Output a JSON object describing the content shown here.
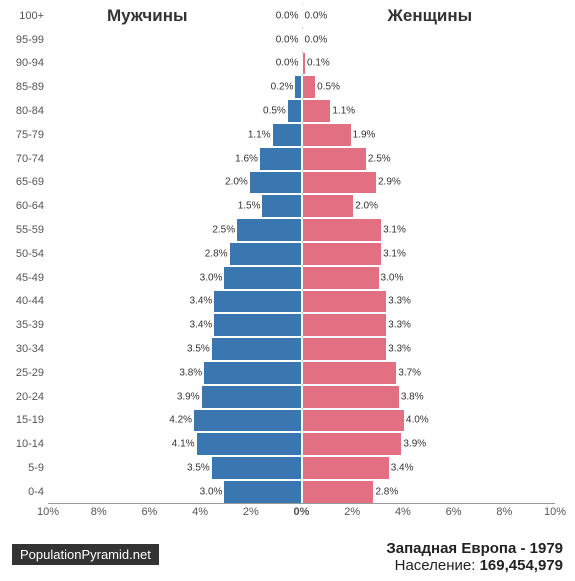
{
  "chart": {
    "type": "population-pyramid",
    "male_label": "Мужчины",
    "female_label": "Женщины",
    "male_color": "#3a77b0",
    "female_color": "#e26f82",
    "background_color": "#ffffff",
    "axis_max_percent": 10,
    "axis_ticks": [
      "10%",
      "8%",
      "6%",
      "4%",
      "2%",
      "0%",
      "2%",
      "4%",
      "6%",
      "8%",
      "10%"
    ],
    "axis_tick_positions_pct": [
      0,
      10,
      20,
      30,
      40,
      50,
      60,
      70,
      80,
      90,
      100
    ],
    "age_label_fontsize": 11,
    "value_label_fontsize": 10,
    "header_fontsize": 17,
    "axis_fontsize": 11,
    "rows": [
      {
        "age": "100+",
        "male": 0.0,
        "female": 0.0,
        "male_txt": "0.0%",
        "female_txt": "0.0%"
      },
      {
        "age": "95-99",
        "male": 0.0,
        "female": 0.0,
        "male_txt": "0.0%",
        "female_txt": "0.0%"
      },
      {
        "age": "90-94",
        "male": 0.0,
        "female": 0.1,
        "male_txt": "0.0%",
        "female_txt": "0.1%"
      },
      {
        "age": "85-89",
        "male": 0.2,
        "female": 0.5,
        "male_txt": "0.2%",
        "female_txt": "0.5%"
      },
      {
        "age": "80-84",
        "male": 0.5,
        "female": 1.1,
        "male_txt": "0.5%",
        "female_txt": "1.1%"
      },
      {
        "age": "75-79",
        "male": 1.1,
        "female": 1.9,
        "male_txt": "1.1%",
        "female_txt": "1.9%"
      },
      {
        "age": "70-74",
        "male": 1.6,
        "female": 2.5,
        "male_txt": "1.6%",
        "female_txt": "2.5%"
      },
      {
        "age": "65-69",
        "male": 2.0,
        "female": 2.9,
        "male_txt": "2.0%",
        "female_txt": "2.9%"
      },
      {
        "age": "60-64",
        "male": 1.5,
        "female": 2.0,
        "male_txt": "1.5%",
        "female_txt": "2.0%"
      },
      {
        "age": "55-59",
        "male": 2.5,
        "female": 3.1,
        "male_txt": "2.5%",
        "female_txt": "3.1%"
      },
      {
        "age": "50-54",
        "male": 2.8,
        "female": 3.1,
        "male_txt": "2.8%",
        "female_txt": "3.1%"
      },
      {
        "age": "45-49",
        "male": 3.0,
        "female": 3.0,
        "male_txt": "3.0%",
        "female_txt": "3.0%"
      },
      {
        "age": "40-44",
        "male": 3.4,
        "female": 3.3,
        "male_txt": "3.4%",
        "female_txt": "3.3%"
      },
      {
        "age": "35-39",
        "male": 3.4,
        "female": 3.3,
        "male_txt": "3.4%",
        "female_txt": "3.3%"
      },
      {
        "age": "30-34",
        "male": 3.5,
        "female": 3.3,
        "male_txt": "3.5%",
        "female_txt": "3.3%"
      },
      {
        "age": "25-29",
        "male": 3.8,
        "female": 3.7,
        "male_txt": "3.8%",
        "female_txt": "3.7%"
      },
      {
        "age": "20-24",
        "male": 3.9,
        "female": 3.8,
        "male_txt": "3.9%",
        "female_txt": "3.8%"
      },
      {
        "age": "15-19",
        "male": 4.2,
        "female": 4.0,
        "male_txt": "4.2%",
        "female_txt": "4.0%"
      },
      {
        "age": "10-14",
        "male": 4.1,
        "female": 3.9,
        "male_txt": "4.1%",
        "female_txt": "3.9%"
      },
      {
        "age": "5-9",
        "male": 3.5,
        "female": 3.4,
        "male_txt": "3.5%",
        "female_txt": "3.4%"
      },
      {
        "age": "0-4",
        "male": 3.0,
        "female": 2.8,
        "male_txt": "3.0%",
        "female_txt": "2.8%"
      }
    ]
  },
  "footer": {
    "source": "PopulationPyramid.net",
    "region_year": "Западная Европа - 1979",
    "population_label": "Население: ",
    "population_value": "169,454,979",
    "source_bg": "#333333",
    "source_fg": "#ffffff"
  }
}
